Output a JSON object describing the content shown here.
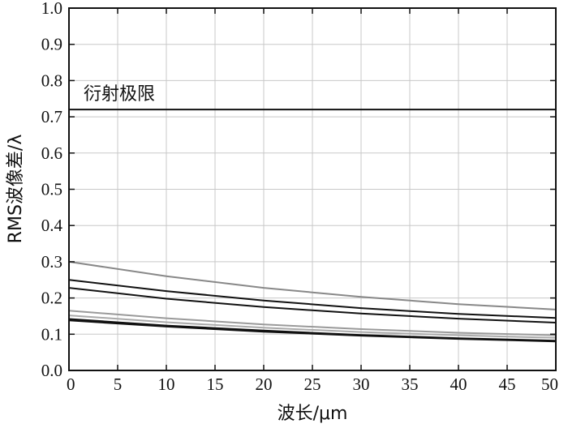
{
  "chart_data": {
    "type": "line",
    "xlabel": "波长/μm",
    "ylabel": "RMS波像差/λ",
    "xlim": [
      0,
      50
    ],
    "ylim": [
      0.0,
      1.0
    ],
    "x_ticks": [
      "0",
      "5",
      "10",
      "15",
      "20",
      "25",
      "30",
      "35",
      "40",
      "45",
      "50"
    ],
    "y_ticks": [
      "0.0",
      "0.1",
      "0.2",
      "0.3",
      "0.4",
      "0.5",
      "0.6",
      "0.7",
      "0.8",
      "0.9",
      "1.0"
    ],
    "grid": true,
    "reference_line": {
      "label": "衍射极限",
      "y": 0.72,
      "color": "#111111"
    },
    "series": [
      {
        "color": "#888888",
        "x": [
          0,
          10,
          20,
          30,
          40,
          50
        ],
        "y": [
          0.3,
          0.26,
          0.228,
          0.203,
          0.183,
          0.168
        ]
      },
      {
        "color": "#111111",
        "x": [
          0,
          10,
          20,
          30,
          40,
          50
        ],
        "y": [
          0.25,
          0.219,
          0.193,
          0.172,
          0.156,
          0.145
        ]
      },
      {
        "color": "#111111",
        "x": [
          0,
          10,
          20,
          30,
          40,
          50
        ],
        "y": [
          0.228,
          0.198,
          0.175,
          0.157,
          0.143,
          0.132
        ]
      },
      {
        "color": "#9a9a9a",
        "x": [
          0,
          10,
          20,
          30,
          40,
          50
        ],
        "y": [
          0.165,
          0.144,
          0.127,
          0.114,
          0.104,
          0.097
        ]
      },
      {
        "color": "#aaaaaa",
        "x": [
          0,
          10,
          20,
          30,
          40,
          50
        ],
        "y": [
          0.152,
          0.133,
          0.118,
          0.106,
          0.097,
          0.09
        ]
      },
      {
        "color": "#111111",
        "x": [
          0,
          10,
          20,
          30,
          40,
          50
        ],
        "y": [
          0.142,
          0.124,
          0.11,
          0.098,
          0.089,
          0.082
        ]
      },
      {
        "color": "#111111",
        "x": [
          0,
          10,
          20,
          30,
          40,
          50
        ],
        "y": [
          0.138,
          0.121,
          0.107,
          0.096,
          0.087,
          0.08
        ]
      }
    ]
  }
}
